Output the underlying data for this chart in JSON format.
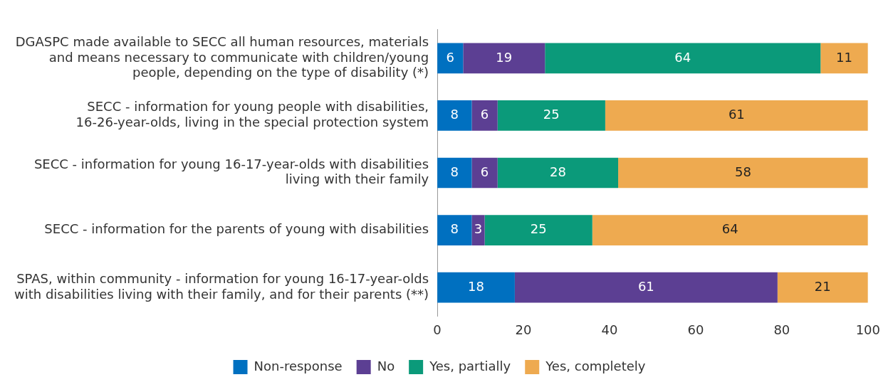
{
  "chart_data": {
    "type": "bar",
    "orientation": "horizontal",
    "stacked": true,
    "categories": [
      "DGASPC made available to SECC all human resources, materials and means necessary to communicate with children/young people, depending on the type of disability (*)",
      "SECC - information for young people with disabilities, 16-26-year-olds, living in the special protection system",
      "SECC - information for young 16-17-year-olds with disabilities living with their family",
      "SECC - information for the parents of young with disabilities",
      "SPAS, within community - information for young 16-17-year-olds with disabilities living with their family, and for their parents (**)"
    ],
    "series": [
      {
        "name": "Non-response",
        "color": "#0070c0",
        "values": [
          6,
          8,
          8,
          8,
          18
        ]
      },
      {
        "name": "No",
        "color": "#5c3f93",
        "values": [
          19,
          6,
          6,
          3,
          61
        ]
      },
      {
        "name": "Yes, partially",
        "color": "#0b9a7a",
        "values": [
          64,
          25,
          28,
          25,
          null
        ]
      },
      {
        "name": "Yes, completely",
        "color": "#eeaa50",
        "values": [
          11,
          61,
          58,
          64,
          21
        ]
      }
    ],
    "xlim": [
      0,
      100
    ],
    "xticks": [
      0,
      20,
      40,
      60,
      80,
      100
    ],
    "grid": false,
    "legend": "bottom",
    "data_labels": true
  }
}
